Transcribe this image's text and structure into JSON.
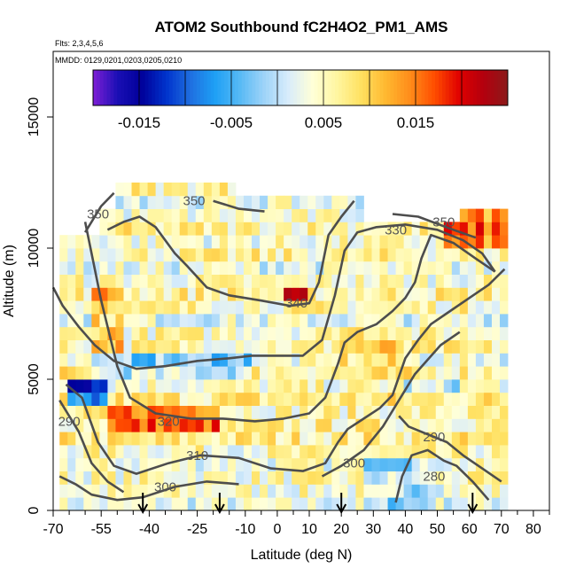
{
  "chart_data": {
    "type": "heatmap",
    "title": "ATOM2 Southbound fC2H4O2_PM1_AMS",
    "flights_label": "Flts: 2,3,4,5,6",
    "mmdd_label": "MMDD: 0129,0201,0203,0205,0210",
    "xlabel": "Latitude (deg N)",
    "ylabel": "Altitude (m)",
    "xlim": [
      -70,
      85
    ],
    "ylim": [
      0,
      17500
    ],
    "xticks": [
      -70,
      -55,
      -40,
      -25,
      -10,
      0,
      10,
      20,
      30,
      40,
      50,
      60,
      70,
      80
    ],
    "yticks": [
      0,
      5000,
      10000,
      15000
    ],
    "colorbar": {
      "range": [
        -0.02,
        0.025
      ],
      "tick_values": [
        -0.015,
        -0.005,
        0.005,
        0.015
      ],
      "tick_labels": [
        "-0.015",
        "-0.005",
        "0.005",
        "0.015"
      ],
      "colors": [
        "#7f1fd6",
        "#1a0fb5",
        "#00009a",
        "#0033cc",
        "#1f6fe0",
        "#1ea0f5",
        "#56b9f5",
        "#9dd3f8",
        "#d8ecfb",
        "#ffffd8",
        "#fff6a0",
        "#ffe060",
        "#ffb830",
        "#ff8c1a",
        "#ff4d00",
        "#e00000",
        "#b3000e",
        "#8b1a1a"
      ]
    },
    "arrows_lat": [
      -42,
      -18,
      20,
      61
    ],
    "contours": [
      {
        "label": "280",
        "label_lat": 49,
        "label_alt": 1300,
        "points": [
          [
            37,
            300
          ],
          [
            39,
            1300
          ],
          [
            42,
            2100
          ],
          [
            47,
            2300
          ],
          [
            52,
            1900
          ],
          [
            56,
            1700
          ],
          [
            61,
            1100
          ],
          [
            66,
            400
          ]
        ]
      },
      {
        "label": "290",
        "label_lat": -65,
        "label_alt": 3400,
        "points": [
          [
            -68,
            4200
          ],
          [
            -62,
            3000
          ],
          [
            -58,
            1800
          ],
          [
            -53,
            1100
          ],
          [
            -48,
            700
          ]
        ]
      },
      {
        "label": "290",
        "label_lat": 49,
        "label_alt": 2800,
        "points": [
          [
            38,
            3600
          ],
          [
            41,
            3200
          ],
          [
            47,
            2900
          ],
          [
            53,
            2600
          ],
          [
            58,
            2100
          ],
          [
            64,
            1600
          ],
          [
            70,
            1100
          ]
        ]
      },
      {
        "label": "300",
        "label_lat": -35,
        "label_alt": 900,
        "points": [
          [
            -68,
            1300
          ],
          [
            -63,
            1000
          ],
          [
            -58,
            600
          ],
          [
            -50,
            400
          ],
          [
            -42,
            500
          ],
          [
            -32,
            900
          ],
          [
            -22,
            1100
          ],
          [
            -12,
            1000
          ]
        ]
      },
      {
        "label": "300",
        "label_lat": 24,
        "label_alt": 1800,
        "points": [
          [
            14,
            1300
          ],
          [
            20,
            1700
          ],
          [
            27,
            2300
          ],
          [
            33,
            3200
          ],
          [
            38,
            4200
          ],
          [
            43,
            5200
          ],
          [
            51,
            6300
          ],
          [
            57,
            6800
          ]
        ]
      },
      {
        "label": "310",
        "label_lat": -25,
        "label_alt": 2100,
        "points": [
          [
            -66,
            4800
          ],
          [
            -61,
            4300
          ],
          [
            -56,
            2600
          ],
          [
            -51,
            1700
          ],
          [
            -44,
            1400
          ],
          [
            -34,
            1800
          ],
          [
            -24,
            2100
          ],
          [
            -12,
            2000
          ],
          [
            -2,
            1600
          ],
          [
            8,
            1500
          ],
          [
            15,
            1800
          ],
          [
            19,
            2600
          ],
          [
            22,
            3100
          ],
          [
            27,
            3500
          ],
          [
            32,
            3900
          ],
          [
            36,
            4400
          ],
          [
            40,
            5800
          ],
          [
            44,
            6500
          ],
          [
            48,
            7100
          ],
          [
            54,
            7600
          ],
          [
            60,
            8100
          ],
          [
            66,
            8600
          ],
          [
            71,
            9200
          ]
        ]
      },
      {
        "label": "320",
        "label_lat": -34,
        "label_alt": 3400,
        "points": [
          [
            -60,
            11000
          ],
          [
            -55,
            8000
          ],
          [
            -50,
            5500
          ],
          [
            -46,
            4300
          ],
          [
            -38,
            3700
          ],
          [
            -27,
            3500
          ],
          [
            -17,
            3500
          ],
          [
            -7,
            3400
          ],
          [
            2,
            3500
          ],
          [
            10,
            3700
          ],
          [
            15,
            4300
          ],
          [
            19,
            5600
          ],
          [
            21,
            6400
          ],
          [
            25,
            6800
          ],
          [
            31,
            7100
          ],
          [
            36,
            7600
          ],
          [
            40,
            8100
          ],
          [
            43,
            8700
          ],
          [
            45,
            9600
          ],
          [
            48,
            10500
          ],
          [
            55,
            10200
          ],
          [
            62,
            9600
          ],
          [
            68,
            9100
          ]
        ]
      },
      {
        "label": "330",
        "label_lat": 37,
        "label_alt": 10700,
        "points": [
          [
            -70,
            8500
          ],
          [
            -67,
            7800
          ],
          [
            -62,
            7000
          ],
          [
            -57,
            6300
          ],
          [
            -51,
            5700
          ],
          [
            -44,
            5400
          ],
          [
            -35,
            5500
          ],
          [
            -25,
            5700
          ],
          [
            -15,
            5800
          ],
          [
            -8,
            5900
          ],
          [
            0,
            5900
          ],
          [
            8,
            5900
          ],
          [
            14,
            6500
          ],
          [
            18,
            8200
          ],
          [
            21,
            9900
          ],
          [
            25,
            10600
          ],
          [
            31,
            10800
          ],
          [
            40,
            10900
          ],
          [
            50,
            10700
          ],
          [
            58,
            10300
          ],
          [
            64,
            9800
          ],
          [
            68,
            9100
          ]
        ]
      },
      {
        "label": "340",
        "label_lat": 6,
        "label_alt": 7900,
        "points": [
          [
            -53,
            10700
          ],
          [
            -48,
            11000
          ],
          [
            -43,
            11200
          ],
          [
            -38,
            10800
          ],
          [
            -32,
            9800
          ],
          [
            -28,
            9300
          ],
          [
            -22,
            8500
          ],
          [
            -15,
            8200
          ],
          [
            -5,
            8000
          ],
          [
            4,
            7800
          ],
          [
            10,
            7900
          ],
          [
            13,
            8700
          ],
          [
            16,
            10500
          ],
          [
            20,
            11200
          ],
          [
            24,
            11800
          ]
        ]
      },
      {
        "label": "350",
        "label_lat": 52,
        "label_alt": 11000,
        "points": [
          [
            36,
            11300
          ],
          [
            44,
            11200
          ],
          [
            55,
            10700
          ],
          [
            62,
            10400
          ]
        ]
      },
      {
        "label": "350",
        "label_lat": -26,
        "label_alt": 11800,
        "points": [
          [
            -20,
            11800
          ],
          [
            -12,
            11500
          ],
          [
            -4,
            11400
          ]
        ]
      },
      {
        "label": "350",
        "label_lat": -56,
        "label_alt": 11300,
        "points": [
          [
            -60,
            10600
          ],
          [
            -55,
            11600
          ],
          [
            -51,
            12100
          ]
        ]
      }
    ]
  }
}
